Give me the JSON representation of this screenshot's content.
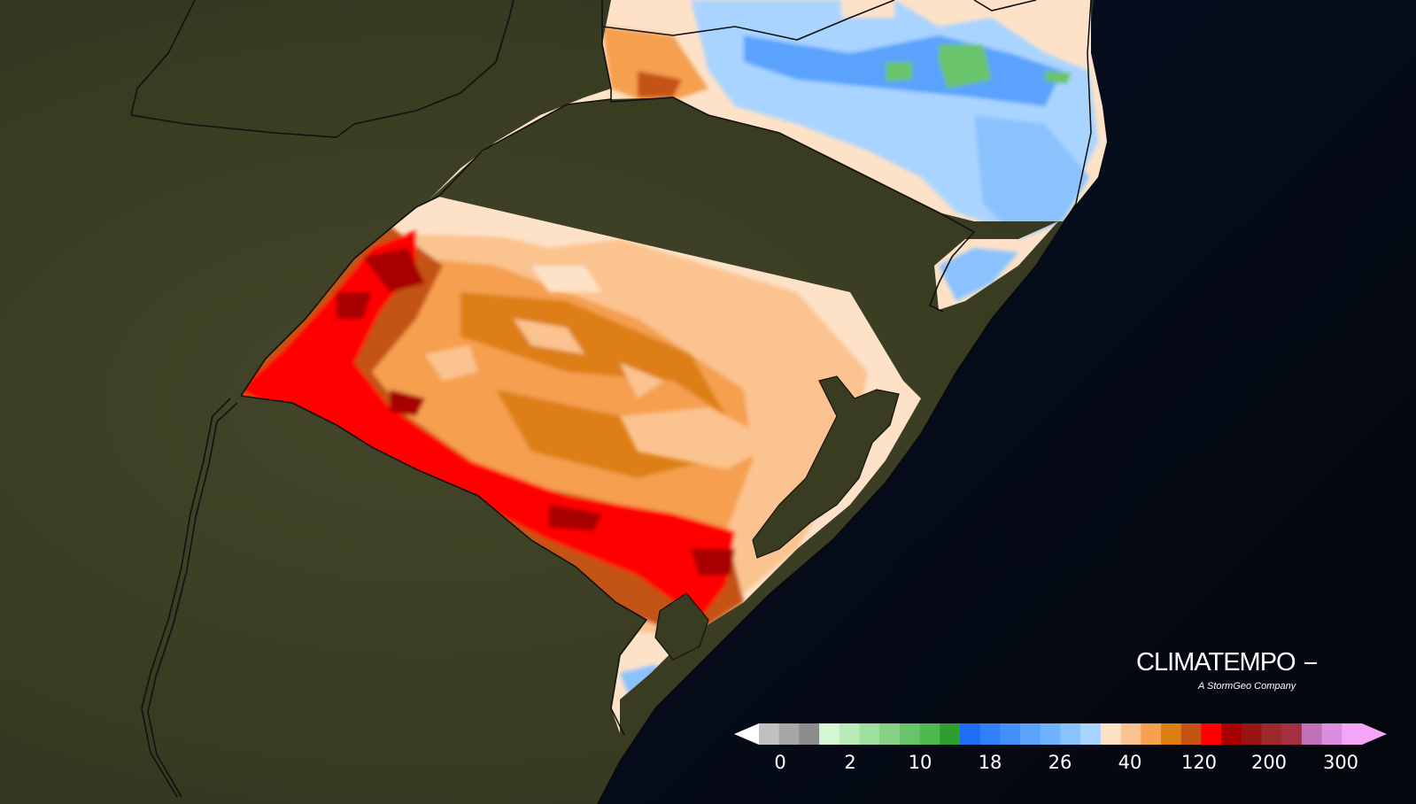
{
  "map": {
    "land_color": "#3e3f24",
    "ocean_color": "#050914",
    "border_color": "#111111"
  },
  "colorbar": {
    "colors": [
      "#ffffff",
      "#c0c0c0",
      "#a6a6a6",
      "#8c8c8c",
      "#d6f7d6",
      "#b9ebb9",
      "#9edf9e",
      "#84d184",
      "#69c469",
      "#4fb84f",
      "#2e9e2e",
      "#1d6ef7",
      "#2f80fa",
      "#4290fb",
      "#5aa2fc",
      "#70b2fd",
      "#8ac2fe",
      "#a9d4ff",
      "#fde2c8",
      "#fbc38f",
      "#f59f4f",
      "#dd7f12",
      "#c45212",
      "#ff0000",
      "#a80000",
      "#9a1414",
      "#9b2a2a",
      "#a63040",
      "#c06fb8",
      "#d98ee0",
      "#f2a6f5"
    ],
    "end_colors": {
      "low": "#ffffff",
      "high": "#f7a6f7"
    },
    "ticks": [
      "0",
      "2",
      "10",
      "18",
      "26",
      "40",
      "120",
      "200",
      "300"
    ]
  },
  "brand": {
    "name": "CLIMATEMPO",
    "tagline": "A StormGeo Company"
  }
}
